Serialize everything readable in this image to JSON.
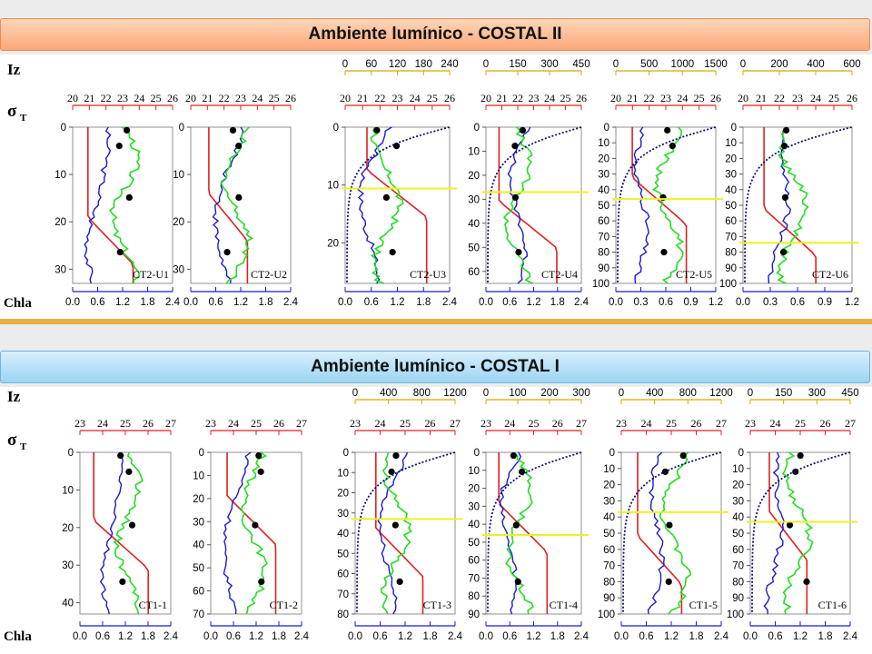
{
  "sections": [
    {
      "title": "Ambiente lumínico - COSTAL II",
      "side_labels": {
        "iz": "Iz",
        "sigma_main": "σ",
        "sigma_sub": "T",
        "chla": "Chla"
      },
      "panels": [
        {
          "name": "CT2-U1",
          "depth_ticks": [
            "0",
            "10",
            "20",
            "30"
          ],
          "depth_max": 33,
          "sigma_ticks": [
            "20",
            "21",
            "22",
            "23",
            "24",
            "25",
            "26"
          ],
          "iz_ticks": [],
          "chla_ticks": [
            "0.0",
            "0.6",
            "1.2",
            "1.8",
            "2.4"
          ],
          "light_depth": null
        },
        {
          "name": "CT2-U2",
          "depth_ticks": [
            "0",
            "10",
            "20",
            "30"
          ],
          "depth_max": 33,
          "sigma_ticks": [
            "20",
            "21",
            "22",
            "23",
            "24",
            "25",
            "26"
          ],
          "iz_ticks": [],
          "chla_ticks": [
            "0.0",
            "0.6",
            "1.2",
            "1.8",
            "2.4"
          ],
          "light_depth": null
        },
        {
          "name": "CT2-U3",
          "depth_ticks": [
            "0",
            "10",
            "20"
          ],
          "depth_max": 27,
          "sigma_ticks": [
            "20",
            "21",
            "22",
            "23",
            "24",
            "25",
            "26"
          ],
          "iz_ticks": [
            "0",
            "60",
            "120",
            "180",
            "240"
          ],
          "chla_ticks": [
            "0.0",
            "0.6",
            "1.2",
            "1.8",
            "2.4"
          ],
          "light_depth": 10.6
        },
        {
          "name": "CT2-U4",
          "depth_ticks": [
            "0",
            "10",
            "20",
            "30",
            "40",
            "50",
            "60"
          ],
          "depth_max": 65,
          "sigma_ticks": [
            "20",
            "21",
            "22",
            "23",
            "24",
            "25",
            "26"
          ],
          "iz_ticks": [
            "0",
            "150",
            "300",
            "450"
          ],
          "chla_ticks": [
            "0.0",
            "0.6",
            "1.2",
            "1.8",
            "2.4"
          ],
          "light_depth": 27
        },
        {
          "name": "CT2-U5",
          "depth_ticks": [
            "0",
            "10",
            "20",
            "30",
            "40",
            "50",
            "60",
            "70",
            "80",
            "90",
            "100"
          ],
          "depth_max": 100,
          "sigma_ticks": [
            "20",
            "21",
            "22",
            "23",
            "24",
            "25",
            "26"
          ],
          "iz_ticks": [
            "0",
            "500",
            "1000",
            "1500"
          ],
          "chla_ticks": [
            "0.0",
            "0.3",
            "0.6",
            "0.9",
            "1.2"
          ],
          "light_depth": 46
        },
        {
          "name": "CT2-U6",
          "depth_ticks": [
            "0",
            "10",
            "20",
            "30",
            "40",
            "50",
            "60",
            "70",
            "80",
            "90",
            "100"
          ],
          "depth_max": 100,
          "sigma_ticks": [
            "20",
            "21",
            "22",
            "23",
            "24",
            "25",
            "26"
          ],
          "iz_ticks": [
            "0",
            "200",
            "400",
            "600"
          ],
          "chla_ticks": [
            "0.0",
            "0.3",
            "0.6",
            "0.9",
            "1.2"
          ],
          "light_depth": 74
        }
      ]
    },
    {
      "title": "Ambiente lumínico - COSTAL I",
      "side_labels": {
        "iz": "Iz",
        "sigma_main": "σ",
        "sigma_sub": "T",
        "chla": "Chla"
      },
      "panels": [
        {
          "name": "CT1-1",
          "depth_ticks": [
            "0",
            "10",
            "20",
            "30",
            "40"
          ],
          "depth_max": 43,
          "sigma_ticks": [
            "23",
            "24",
            "25",
            "26",
            "27"
          ],
          "iz_ticks": [],
          "chla_ticks": [
            "0.0",
            "0.6",
            "1.2",
            "1.8",
            "2.4"
          ],
          "light_depth": null
        },
        {
          "name": "CT1-2",
          "depth_ticks": [
            "0",
            "10",
            "20",
            "30",
            "40",
            "50",
            "60",
            "70"
          ],
          "depth_max": 70,
          "sigma_ticks": [
            "23",
            "24",
            "25",
            "26",
            "27"
          ],
          "iz_ticks": [],
          "chla_ticks": [
            "0.0",
            "0.6",
            "1.2",
            "1.8",
            "2.4"
          ],
          "light_depth": null
        },
        {
          "name": "CT1-3",
          "depth_ticks": [
            "0",
            "10",
            "20",
            "30",
            "40",
            "50",
            "60",
            "70",
            "80"
          ],
          "depth_max": 80,
          "sigma_ticks": [
            "23",
            "24",
            "25",
            "26",
            "27"
          ],
          "iz_ticks": [
            "0",
            "400",
            "800",
            "1200"
          ],
          "chla_ticks": [
            "0.0",
            "0.6",
            "1.2",
            "1.8",
            "2.4"
          ],
          "light_depth": 33
        },
        {
          "name": "CT1-4",
          "depth_ticks": [
            "0",
            "10",
            "20",
            "30",
            "40",
            "50",
            "60",
            "70",
            "80",
            "90"
          ],
          "depth_max": 90,
          "sigma_ticks": [
            "23",
            "24",
            "25",
            "26",
            "27"
          ],
          "iz_ticks": [
            "0",
            "100",
            "200",
            "300"
          ],
          "chla_ticks": [
            "0.0",
            "0.6",
            "1.2",
            "1.8",
            "2.4"
          ],
          "light_depth": 46
        },
        {
          "name": "CT1-5",
          "depth_ticks": [
            "0",
            "10",
            "20",
            "30",
            "40",
            "50",
            "60",
            "70",
            "80",
            "90",
            "100"
          ],
          "depth_max": 100,
          "sigma_ticks": [
            "23",
            "24",
            "25",
            "26",
            "27"
          ],
          "iz_ticks": [
            "0",
            "400",
            "800",
            "1200"
          ],
          "chla_ticks": [
            "0.0",
            "0.6",
            "1.2",
            "1.8",
            "2.4"
          ],
          "light_depth": 37
        },
        {
          "name": "CT1-6",
          "depth_ticks": [
            "0",
            "10",
            "20",
            "30",
            "40",
            "50",
            "60",
            "70",
            "80",
            "90",
            "100"
          ],
          "depth_max": 100,
          "sigma_ticks": [
            "23",
            "24",
            "25",
            "26",
            "27"
          ],
          "iz_ticks": [
            "0",
            "150",
            "300",
            "450"
          ],
          "chla_ticks": [
            "0.0",
            "0.6",
            "1.2",
            "1.8",
            "2.4"
          ],
          "light_depth": 43
        }
      ]
    }
  ],
  "colors": {
    "sigma": "#e02020",
    "chla": "#22dd22",
    "iz": "#101070",
    "blue_profile": "#1a1ad0",
    "light_line": "#f0f020",
    "axis_red": "#dd2222",
    "axis_gold": "#d9a800",
    "axis_blue": "#1a1ad0"
  },
  "chart_data": {
    "type": "line",
    "note_series": [
      "sigma-t",
      "chlorophyll-a",
      "Iz"
    ],
    "profiles_per_section": 6,
    "chla_range_typical": [
      0.0,
      2.4
    ],
    "sigma_range_costal_ii": [
      20,
      26
    ],
    "sigma_range_costal_i": [
      23,
      27
    ]
  }
}
